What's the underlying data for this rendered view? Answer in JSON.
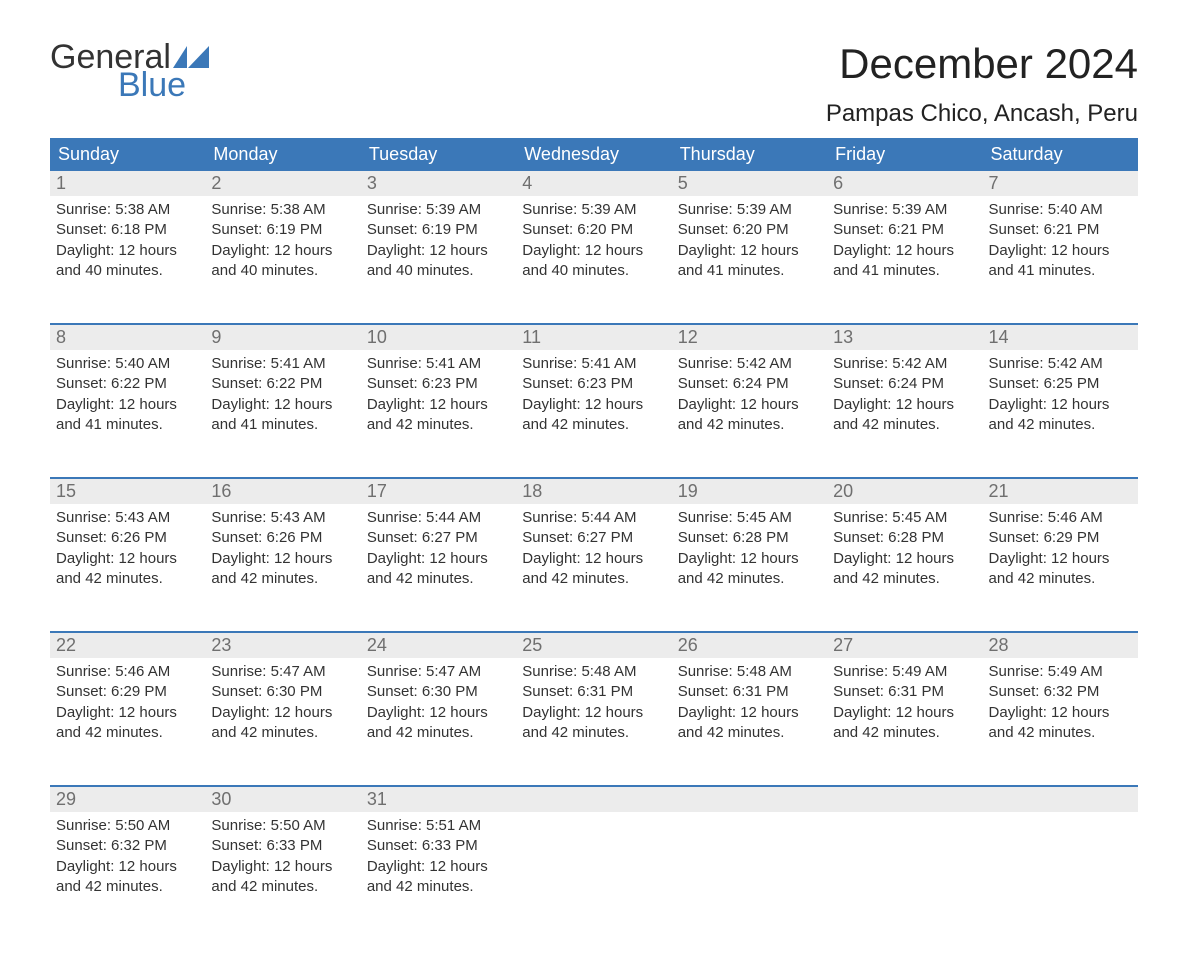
{
  "logo": {
    "text1": "General",
    "text2": "Blue",
    "flag_color": "#3b78b8"
  },
  "colors": {
    "header_bg": "#3b78b8",
    "header_text": "#ffffff",
    "daynum_bg": "#ececec",
    "daynum_text": "#6f6f6f",
    "body_text": "#333333",
    "page_bg": "#ffffff",
    "week_sep": "#3b78b8"
  },
  "title": "December 2024",
  "location": "Pampas Chico, Ancash, Peru",
  "day_headers": [
    "Sunday",
    "Monday",
    "Tuesday",
    "Wednesday",
    "Thursday",
    "Friday",
    "Saturday"
  ],
  "weeks": [
    [
      {
        "n": "1",
        "sunrise": "5:38 AM",
        "sunset": "6:18 PM",
        "daylight": "12 hours and 40 minutes."
      },
      {
        "n": "2",
        "sunrise": "5:38 AM",
        "sunset": "6:19 PM",
        "daylight": "12 hours and 40 minutes."
      },
      {
        "n": "3",
        "sunrise": "5:39 AM",
        "sunset": "6:19 PM",
        "daylight": "12 hours and 40 minutes."
      },
      {
        "n": "4",
        "sunrise": "5:39 AM",
        "sunset": "6:20 PM",
        "daylight": "12 hours and 40 minutes."
      },
      {
        "n": "5",
        "sunrise": "5:39 AM",
        "sunset": "6:20 PM",
        "daylight": "12 hours and 41 minutes."
      },
      {
        "n": "6",
        "sunrise": "5:39 AM",
        "sunset": "6:21 PM",
        "daylight": "12 hours and 41 minutes."
      },
      {
        "n": "7",
        "sunrise": "5:40 AM",
        "sunset": "6:21 PM",
        "daylight": "12 hours and 41 minutes."
      }
    ],
    [
      {
        "n": "8",
        "sunrise": "5:40 AM",
        "sunset": "6:22 PM",
        "daylight": "12 hours and 41 minutes."
      },
      {
        "n": "9",
        "sunrise": "5:41 AM",
        "sunset": "6:22 PM",
        "daylight": "12 hours and 41 minutes."
      },
      {
        "n": "10",
        "sunrise": "5:41 AM",
        "sunset": "6:23 PM",
        "daylight": "12 hours and 42 minutes."
      },
      {
        "n": "11",
        "sunrise": "5:41 AM",
        "sunset": "6:23 PM",
        "daylight": "12 hours and 42 minutes."
      },
      {
        "n": "12",
        "sunrise": "5:42 AM",
        "sunset": "6:24 PM",
        "daylight": "12 hours and 42 minutes."
      },
      {
        "n": "13",
        "sunrise": "5:42 AM",
        "sunset": "6:24 PM",
        "daylight": "12 hours and 42 minutes."
      },
      {
        "n": "14",
        "sunrise": "5:42 AM",
        "sunset": "6:25 PM",
        "daylight": "12 hours and 42 minutes."
      }
    ],
    [
      {
        "n": "15",
        "sunrise": "5:43 AM",
        "sunset": "6:26 PM",
        "daylight": "12 hours and 42 minutes."
      },
      {
        "n": "16",
        "sunrise": "5:43 AM",
        "sunset": "6:26 PM",
        "daylight": "12 hours and 42 minutes."
      },
      {
        "n": "17",
        "sunrise": "5:44 AM",
        "sunset": "6:27 PM",
        "daylight": "12 hours and 42 minutes."
      },
      {
        "n": "18",
        "sunrise": "5:44 AM",
        "sunset": "6:27 PM",
        "daylight": "12 hours and 42 minutes."
      },
      {
        "n": "19",
        "sunrise": "5:45 AM",
        "sunset": "6:28 PM",
        "daylight": "12 hours and 42 minutes."
      },
      {
        "n": "20",
        "sunrise": "5:45 AM",
        "sunset": "6:28 PM",
        "daylight": "12 hours and 42 minutes."
      },
      {
        "n": "21",
        "sunrise": "5:46 AM",
        "sunset": "6:29 PM",
        "daylight": "12 hours and 42 minutes."
      }
    ],
    [
      {
        "n": "22",
        "sunrise": "5:46 AM",
        "sunset": "6:29 PM",
        "daylight": "12 hours and 42 minutes."
      },
      {
        "n": "23",
        "sunrise": "5:47 AM",
        "sunset": "6:30 PM",
        "daylight": "12 hours and 42 minutes."
      },
      {
        "n": "24",
        "sunrise": "5:47 AM",
        "sunset": "6:30 PM",
        "daylight": "12 hours and 42 minutes."
      },
      {
        "n": "25",
        "sunrise": "5:48 AM",
        "sunset": "6:31 PM",
        "daylight": "12 hours and 42 minutes."
      },
      {
        "n": "26",
        "sunrise": "5:48 AM",
        "sunset": "6:31 PM",
        "daylight": "12 hours and 42 minutes."
      },
      {
        "n": "27",
        "sunrise": "5:49 AM",
        "sunset": "6:31 PM",
        "daylight": "12 hours and 42 minutes."
      },
      {
        "n": "28",
        "sunrise": "5:49 AM",
        "sunset": "6:32 PM",
        "daylight": "12 hours and 42 minutes."
      }
    ],
    [
      {
        "n": "29",
        "sunrise": "5:50 AM",
        "sunset": "6:32 PM",
        "daylight": "12 hours and 42 minutes."
      },
      {
        "n": "30",
        "sunrise": "5:50 AM",
        "sunset": "6:33 PM",
        "daylight": "12 hours and 42 minutes."
      },
      {
        "n": "31",
        "sunrise": "5:51 AM",
        "sunset": "6:33 PM",
        "daylight": "12 hours and 42 minutes."
      },
      null,
      null,
      null,
      null
    ]
  ],
  "labels": {
    "sunrise": "Sunrise: ",
    "sunset": "Sunset: ",
    "daylight": "Daylight: "
  }
}
